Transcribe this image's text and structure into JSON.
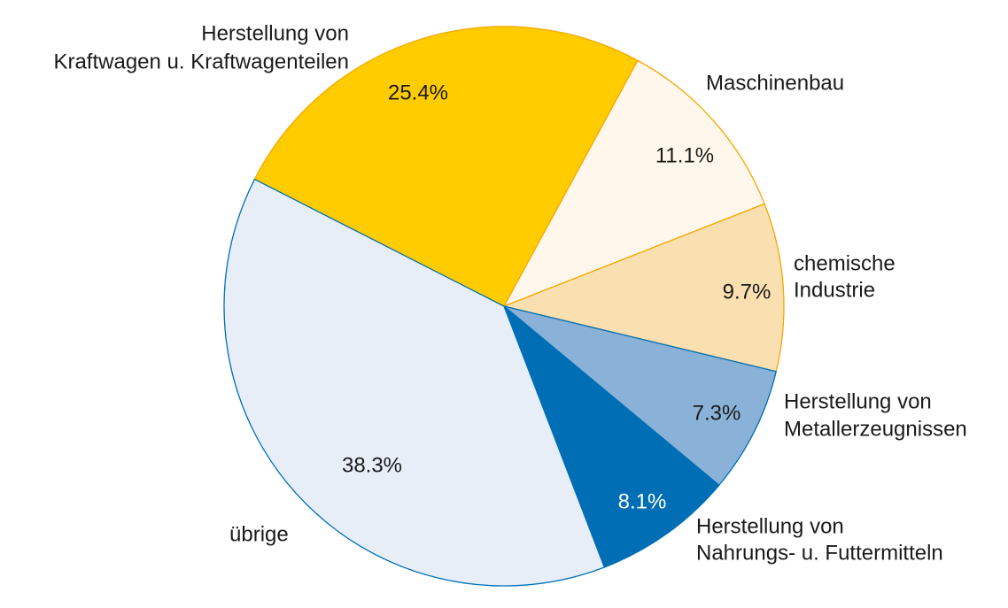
{
  "chart_data": {
    "type": "pie",
    "title": "",
    "slices": [
      {
        "label": [
          "Herstellung von",
          "Kraftwagen u. Kraftwagenteilen"
        ],
        "value": 25.4,
        "value_label": "25.4%",
        "color": "#FFCC00",
        "stroke": "#F5A800"
      },
      {
        "label": [
          "Maschinenbau"
        ],
        "value": 11.1,
        "value_label": "11.1%",
        "color": "#FFF7EB",
        "stroke": "#F5A800"
      },
      {
        "label": [
          "chemische",
          "Industrie"
        ],
        "value": 9.7,
        "value_label": "9.7%",
        "color": "#FADFB0",
        "stroke": "#F5A800"
      },
      {
        "label": [
          "Herstellung von",
          "Metallerzeugnissen"
        ],
        "value": 7.3,
        "value_label": "7.3%",
        "color": "#8AB1D7",
        "stroke": "#0070B8"
      },
      {
        "label": [
          "Herstellung von",
          "Nahrungs- u. Futtermitteln"
        ],
        "value": 8.1,
        "value_label": "8.1%",
        "color": "#006EB5",
        "stroke": "#0070B8",
        "value_label_color": "#ffffff"
      },
      {
        "label": [
          "übrige"
        ],
        "value": 38.3,
        "value_label": "38.3%",
        "color": "#E8EEF7",
        "stroke": "#0070B8"
      }
    ],
    "start_angle_deg": 297,
    "direction": "clockwise"
  }
}
